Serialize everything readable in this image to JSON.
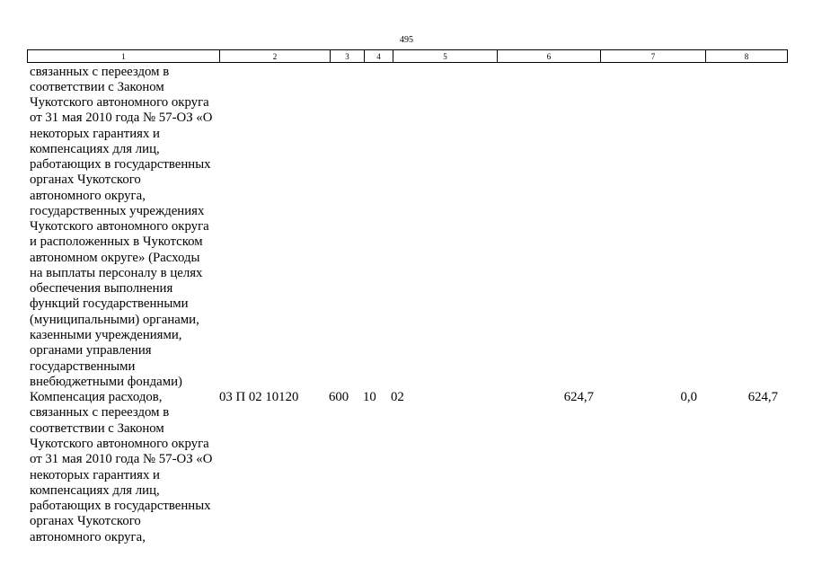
{
  "page_number": "495",
  "header": [
    "1",
    "2",
    "3",
    "4",
    "5",
    "6",
    "7",
    "8"
  ],
  "rows": [
    {
      "lines": [
        "связанных с переездом в",
        "соответствии с Законом",
        "Чукотского автономного округа",
        "от 31 мая 2010 года № 57-ОЗ «О",
        "некоторых гарантиях и",
        "компенсациях для лиц,",
        "работающих в государственных",
        "органах Чукотского",
        "автономного округа,",
        "государственных учреждениях",
        "Чукотского автономного округа",
        "и расположенных в Чукотском",
        "автономном округе» (Расходы",
        "на выплаты персоналу в целях",
        "обеспечения выполнения",
        "функций государственными",
        "(муниципальными) органами,",
        "казенными учреждениями,",
        "органами управления",
        "государственными",
        "внебюджетными фондами)"
      ]
    },
    {
      "lines": [
        "Компенсация расходов,",
        "связанных с переездом в",
        "соответствии с Законом",
        "Чукотского автономного округа",
        "от 31 мая 2010 года № 57-ОЗ «О",
        "некоторых гарантиях и",
        "компенсациях для лиц,",
        "работающих в государственных",
        "органах Чукотского",
        "автономного округа,"
      ],
      "cells": [
        "03 П 02 10120",
        "600",
        "10",
        "02",
        "624,7",
        "0,0",
        "624,7"
      ]
    }
  ]
}
